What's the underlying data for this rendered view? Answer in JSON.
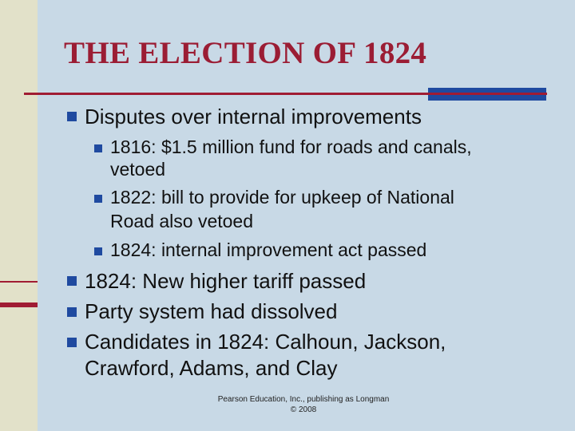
{
  "slide": {
    "title": "THE ELECTION OF 1824",
    "bullets": {
      "b1": "Disputes over internal improvements",
      "b1_1a": "1816: $1.5 million fund for roads and canals,",
      "b1_1b": "vetoed",
      "b1_2a": "1822: bill to provide for upkeep of National",
      "b1_2b": "Road also vetoed",
      "b1_3": "1824: internal improvement act passed",
      "b2": "1824: New higher tariff passed",
      "b3": "Party system had dissolved",
      "b4a": "Candidates in 1824: Calhoun, Jackson,",
      "b4b": "Crawford, Adams, and Clay"
    },
    "footer": {
      "line1": "Pearson Education, Inc., publishing as Longman",
      "line2": "© 2008"
    }
  },
  "colors": {
    "background": "#c8d9e6",
    "title": "#9b1d34",
    "accent_red": "#a01c33",
    "accent_blue": "#1f4aa0",
    "side_strip": "#e2e1c9"
  }
}
